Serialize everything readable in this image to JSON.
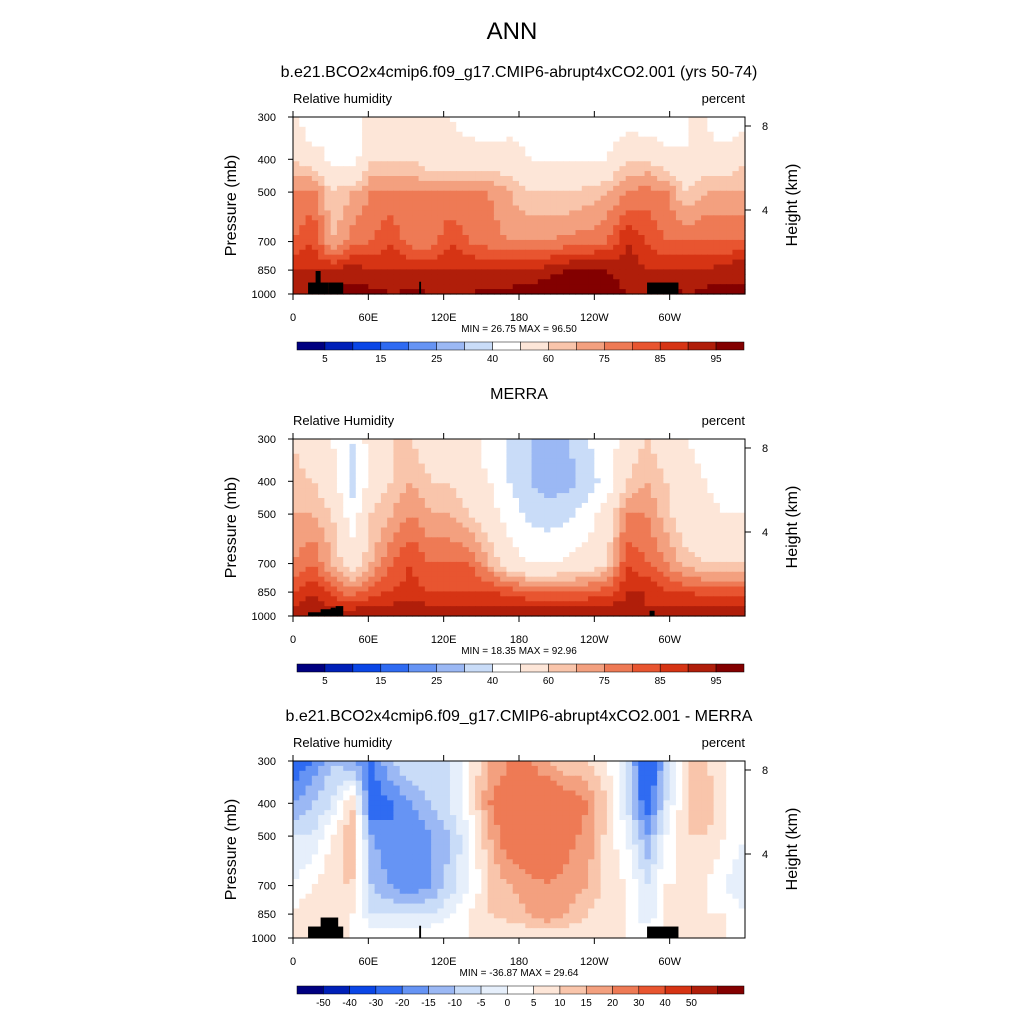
{
  "figure": {
    "title": "ANN"
  },
  "colors": {
    "rh_scale": [
      "#000080",
      "#0020b8",
      "#0a46e6",
      "#2f6bf2",
      "#6694f4",
      "#9bb8f4",
      "#c9dcf8",
      "#ffffff",
      "#fde6d8",
      "#f9c5ab",
      "#f3a07f",
      "#ee7a55",
      "#e85530",
      "#d63414",
      "#b01e0a",
      "#830000"
    ],
    "diff_scale": [
      "#000080",
      "#0020b8",
      "#0a46e6",
      "#2f6bf2",
      "#6694f4",
      "#9bb8f4",
      "#c9dcf8",
      "#e6effb",
      "#ffffff",
      "#fde6d8",
      "#f9c5ab",
      "#f3a07f",
      "#ee7a55",
      "#e85530",
      "#d63414",
      "#b01e0a",
      "#830000"
    ]
  },
  "chart_data": [
    {
      "type": "heatmap",
      "title": "b.e21.BCO2x4cmip6.f09_g17.CMIP6-abrupt4xCO2.001 (yrs 50-74)",
      "left_label": "Relative humidity",
      "right_label": "percent",
      "ylabel": "Pressure (mb)",
      "ylabel_right": "Height (km)",
      "pressure_ticks": [
        "300",
        "400",
        "500",
        "700",
        "850",
        "1000"
      ],
      "height_ticks": [
        "8",
        "4"
      ],
      "lon_ticks": [
        "0",
        "60E",
        "120E",
        "180",
        "120W",
        "60W"
      ],
      "stats": "MIN = 26.75  MAX = 96.50",
      "colorbar_labels": [
        "5",
        "15",
        "25",
        "40",
        "60",
        "75",
        "85",
        "95"
      ],
      "min": 26.75,
      "max": 96.5,
      "field": [
        [
          55,
          40,
          50,
          42,
          55,
          55,
          53,
          55,
          50,
          45,
          42,
          45,
          45,
          42,
          40,
          40,
          42,
          45,
          42,
          40,
          50,
          50,
          40,
          45
        ],
        [
          60,
          55,
          48,
          45,
          60,
          60,
          60,
          55,
          55,
          55,
          55,
          55,
          50,
          50,
          50,
          50,
          50,
          60,
          60,
          55,
          50,
          55,
          55,
          60
        ],
        [
          70,
          72,
          60,
          65,
          70,
          70,
          70,
          70,
          70,
          70,
          70,
          65,
          60,
          60,
          60,
          62,
          65,
          70,
          72,
          70,
          60,
          65,
          65,
          65
        ],
        [
          75,
          80,
          65,
          72,
          75,
          80,
          72,
          72,
          80,
          75,
          72,
          70,
          70,
          70,
          72,
          72,
          75,
          85,
          80,
          75,
          75,
          75,
          75,
          75
        ],
        [
          85,
          85,
          85,
          88,
          85,
          85,
          85,
          85,
          85,
          85,
          85,
          85,
          85,
          88,
          90,
          92,
          90,
          88,
          85,
          85,
          85,
          85,
          88,
          90
        ],
        [
          90,
          90,
          92,
          92,
          92,
          90,
          92,
          90,
          90,
          90,
          92,
          92,
          93,
          94,
          95,
          95,
          92,
          90,
          85,
          92,
          90,
          92,
          92,
          90
        ]
      ],
      "topography": [
        {
          "lon": [
            12,
            28
          ],
          "p": 925
        },
        {
          "lon": [
            18,
            22
          ],
          "p": 855
        },
        {
          "lon": [
            28,
            40
          ],
          "p": 925
        },
        {
          "lon": [
            100.5,
            102
          ],
          "p": 920
        },
        {
          "lon": [
            282,
            307
          ],
          "p": 925
        }
      ]
    },
    {
      "type": "heatmap",
      "title": "MERRA",
      "left_label": "Relative Humidity",
      "right_label": "percent",
      "ylabel": "Pressure (mb)",
      "ylabel_right": "Height (km)",
      "pressure_ticks": [
        "300",
        "400",
        "500",
        "700",
        "850",
        "1000"
      ],
      "height_ticks": [
        "8",
        "4"
      ],
      "lon_ticks": [
        "0",
        "60E",
        "120E",
        "180",
        "120W",
        "60W"
      ],
      "stats": "MIN = 18.35  MAX = 92.96",
      "colorbar_labels": [
        "5",
        "15",
        "25",
        "40",
        "60",
        "75",
        "85",
        "95"
      ],
      "min": 18.35,
      "max": 92.96,
      "field": [
        [
          60,
          55,
          50,
          40,
          55,
          60,
          60,
          55,
          55,
          55,
          45,
          40,
          30,
          25,
          30,
          40,
          45,
          55,
          60,
          55,
          50,
          45,
          40,
          45
        ],
        [
          62,
          60,
          55,
          35,
          55,
          60,
          65,
          60,
          60,
          55,
          50,
          40,
          30,
          25,
          25,
          35,
          45,
          60,
          65,
          60,
          55,
          50,
          40,
          45
        ],
        [
          65,
          65,
          60,
          45,
          60,
          65,
          70,
          65,
          65,
          60,
          55,
          45,
          38,
          35,
          38,
          45,
          55,
          70,
          70,
          62,
          55,
          55,
          50,
          50
        ],
        [
          70,
          75,
          65,
          55,
          65,
          75,
          80,
          75,
          75,
          75,
          65,
          55,
          50,
          50,
          52,
          55,
          60,
          80,
          75,
          70,
          62,
          60,
          60,
          60
        ],
        [
          80,
          85,
          78,
          72,
          78,
          80,
          82,
          80,
          80,
          80,
          80,
          78,
          76,
          75,
          75,
          76,
          78,
          85,
          85,
          80,
          80,
          78,
          78,
          78
        ],
        [
          88,
          90,
          90,
          90,
          90,
          90,
          90,
          90,
          90,
          90,
          90,
          90,
          90,
          90,
          90,
          90,
          90,
          88,
          85,
          88,
          90,
          90,
          90,
          90
        ]
      ],
      "topography": [
        {
          "lon": [
            12,
            28
          ],
          "p": 975
        },
        {
          "lon": [
            22,
            36
          ],
          "p": 955
        },
        {
          "lon": [
            30,
            34
          ],
          "p": 945
        },
        {
          "lon": [
            34,
            40
          ],
          "p": 935
        },
        {
          "lon": [
            284,
            288
          ],
          "p": 965
        }
      ]
    },
    {
      "type": "heatmap",
      "title": "b.e21.BCO2x4cmip6.f09_g17.CMIP6-abrupt4xCO2.001 - MERRA",
      "left_label": "Relative humidity",
      "right_label": "percent",
      "ylabel": "Pressure (mb)",
      "ylabel_right": "Height (km)",
      "pressure_ticks": [
        "300",
        "400",
        "500",
        "700",
        "850",
        "1000"
      ],
      "height_ticks": [
        "8",
        "4"
      ],
      "lon_ticks": [
        "0",
        "60E",
        "120E",
        "180",
        "120W",
        "60W"
      ],
      "stats": "MIN = -36.87  MAX = 29.64",
      "colorbar_labels": [
        "-50",
        "-40",
        "-30",
        "-20",
        "-15",
        "-10",
        "-5",
        "0",
        "5",
        "10",
        "15",
        "20",
        "30",
        "40",
        "50"
      ],
      "min": -36.87,
      "max": 29.64,
      "field": [
        [
          -25,
          -20,
          -10,
          -15,
          -20,
          -10,
          -5,
          -5,
          -5,
          5,
          15,
          20,
          20,
          15,
          10,
          10,
          5,
          -5,
          -30,
          -10,
          10,
          10,
          5,
          0
        ],
        [
          -15,
          -10,
          -5,
          10,
          -25,
          -20,
          -15,
          -10,
          -5,
          5,
          20,
          25,
          28,
          27,
          25,
          20,
          10,
          -5,
          -25,
          -5,
          10,
          15,
          5,
          0
        ],
        [
          -5,
          -5,
          5,
          15,
          -15,
          -20,
          -20,
          -15,
          -10,
          0,
          15,
          25,
          28,
          25,
          22,
          18,
          8,
          0,
          -15,
          0,
          10,
          10,
          5,
          0
        ],
        [
          0,
          5,
          10,
          10,
          -10,
          -15,
          -20,
          -15,
          -8,
          0,
          10,
          15,
          18,
          20,
          18,
          15,
          8,
          5,
          -5,
          5,
          5,
          5,
          0,
          -5
        ],
        [
          5,
          10,
          5,
          5,
          -5,
          -5,
          -5,
          -5,
          0,
          5,
          10,
          12,
          15,
          20,
          15,
          10,
          5,
          5,
          -5,
          5,
          5,
          5,
          5,
          0
        ],
        [
          5,
          5,
          5,
          5,
          5,
          5,
          5,
          5,
          5,
          5,
          5,
          5,
          5,
          5,
          5,
          5,
          5,
          5,
          5,
          5,
          5,
          5,
          5,
          5
        ]
      ],
      "topography": [
        {
          "lon": [
            12,
            28
          ],
          "p": 925
        },
        {
          "lon": [
            22,
            36
          ],
          "p": 870
        },
        {
          "lon": [
            28,
            40
          ],
          "p": 925
        },
        {
          "lon": [
            100.5,
            102
          ],
          "p": 920
        },
        {
          "lon": [
            282,
            307
          ],
          "p": 925
        }
      ]
    }
  ]
}
